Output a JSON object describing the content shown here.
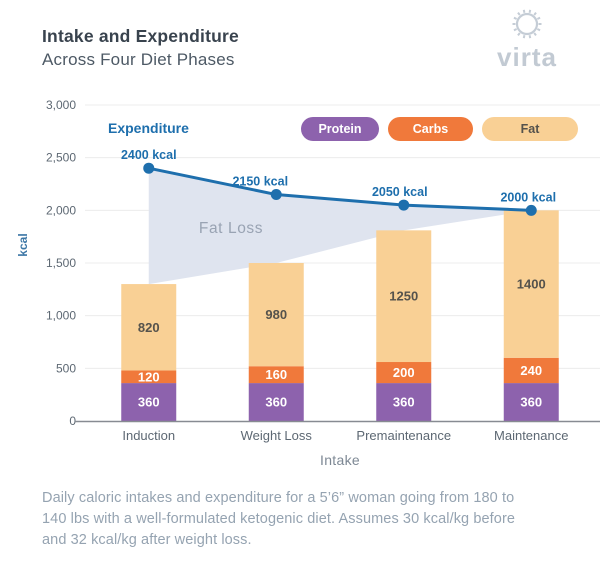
{
  "header": {
    "title": "Intake and Expenditure",
    "subtitle": "Across Four Diet Phases",
    "brand": "virta"
  },
  "chart_data": {
    "type": "bar",
    "variant": "stacked-bars-with-line-overlay",
    "categories": [
      "Induction",
      "Weight Loss",
      "Premaintenance",
      "Maintenance"
    ],
    "series": [
      {
        "name": "Protein",
        "color": "#8d62ad",
        "text_color": "#ffffff",
        "values": [
          360,
          360,
          360,
          360
        ]
      },
      {
        "name": "Carbs",
        "color": "#f0793b",
        "text_color": "#ffffff",
        "values": [
          120,
          160,
          200,
          240
        ]
      },
      {
        "name": "Fat",
        "color": "#f9d095",
        "text_color": "#55524c",
        "values": [
          820,
          980,
          1250,
          1400
        ]
      }
    ],
    "line": {
      "name": "Expenditure",
      "color": "#1e6fad",
      "values": [
        2400,
        2150,
        2050,
        2000
      ]
    },
    "unit": "kcal",
    "area_label": "Fat Loss",
    "area_color": "#dfe4ef",
    "xlabel": "Intake",
    "ylabel": "kcal",
    "ylim": [
      0,
      3000
    ],
    "ytick_step": 500,
    "grid": true,
    "legend_position": "top-right"
  },
  "footer": {
    "caption_lines": [
      "Daily caloric intakes and expenditure for a 5’6” woman going from 180 to",
      "140 lbs with a well-formulated ketogenic diet. Assumes 30 kcal/kg before",
      "and 32 kcal/kg after weight loss."
    ]
  }
}
